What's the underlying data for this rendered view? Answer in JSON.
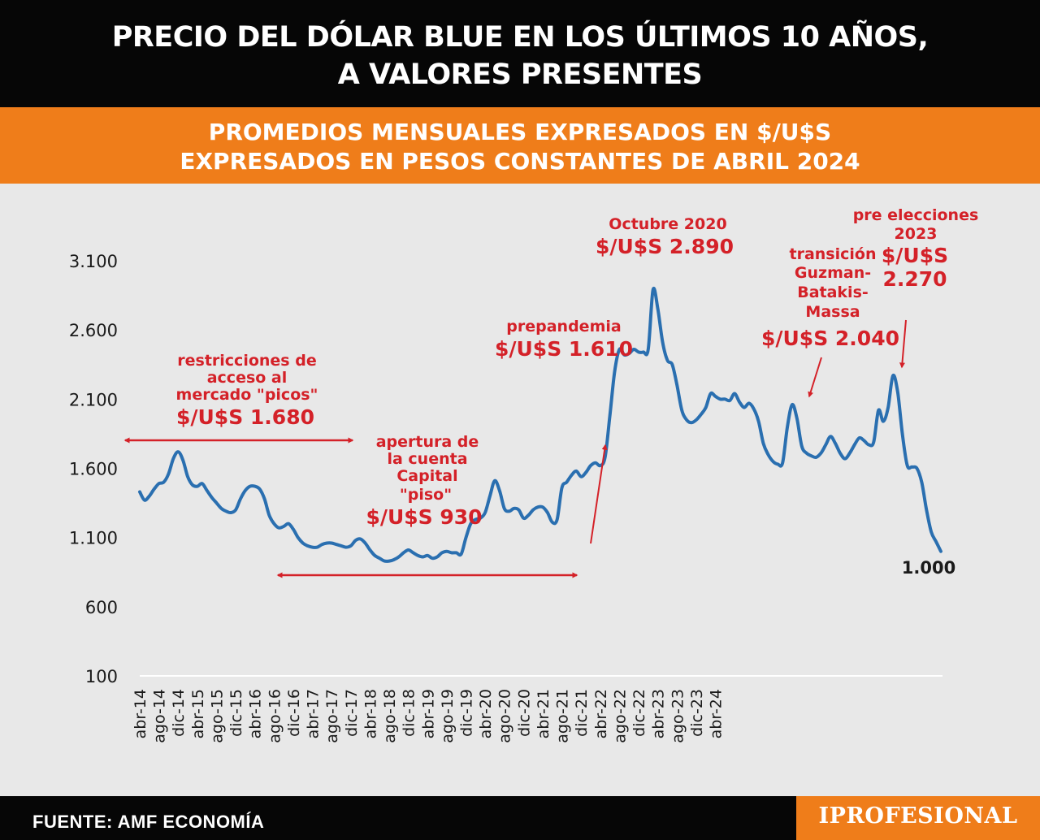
{
  "header": {
    "title_line1": "PRECIO DEL DÓLAR BLUE EN LOS ÚLTIMOS 10 AÑOS,",
    "title_line2": "A VALORES PRESENTES"
  },
  "subtitle": {
    "line1": "PROMEDIOS MENSUALES EXPRESADOS EN $/U$S",
    "line2": "EXPRESADOS EN PESOS CONSTANTES DE ABRIL 2024"
  },
  "footer": {
    "source": "FUENTE: AMF ECONOMÍA",
    "logo": "IPROFESIONAL"
  },
  "colors": {
    "line": "#2a6fb0",
    "annotation": "#d42128",
    "band": "#ef7d1a",
    "header": "#060606",
    "background": "#e8e8e8",
    "axis_text": "#1a1a1a"
  },
  "chart_data": {
    "type": "line",
    "title": "PRECIO DEL DÓLAR BLUE EN LOS ÚLTIMOS 10 AÑOS, A VALORES PRESENTES",
    "subtitle": "PROMEDIOS MENSUALES EXPRESADOS EN $/U$S EXPRESADOS EN PESOS CONSTANTES DE ABRIL 2024",
    "xlabel": "",
    "ylabel": "",
    "ylim": [
      100,
      3100
    ],
    "yticks": [
      100,
      600,
      1100,
      1600,
      2100,
      2600,
      3100
    ],
    "ytick_labels": [
      "100",
      "600",
      "1.100",
      "1.600",
      "2.100",
      "2.600",
      "3.100"
    ],
    "xtick_labels": [
      "abr-14",
      "ago-14",
      "dic-14",
      "abr-15",
      "ago-15",
      "dic-15",
      "abr-16",
      "ago-16",
      "dic-16",
      "abr-17",
      "ago-17",
      "dic-17",
      "abr-18",
      "ago-18",
      "dic-18",
      "abr-19",
      "ago-19",
      "dic-19",
      "abr-20",
      "ago-20",
      "dic-20",
      "abr-21",
      "ago-21",
      "dic-21",
      "abr-22",
      "ago-22",
      "dic-22",
      "abr-23",
      "ago-23",
      "dic-23",
      "abr-24"
    ],
    "grid": false,
    "legend": "none",
    "series": [
      {
        "values": [
          1430,
          1370,
          1400,
          1450,
          1490,
          1500,
          1560,
          1670,
          1720,
          1660,
          1540,
          1480,
          1470,
          1490,
          1440,
          1390,
          1350,
          1310,
          1290,
          1280,
          1300,
          1380,
          1440,
          1470,
          1470,
          1450,
          1380,
          1260,
          1200,
          1170,
          1180,
          1200,
          1160,
          1100,
          1060,
          1040,
          1030,
          1030,
          1050,
          1060,
          1060,
          1050,
          1040,
          1030,
          1040,
          1080,
          1090,
          1060,
          1010,
          970,
          950,
          930,
          930,
          940,
          960,
          990,
          1010,
          990,
          970,
          960,
          970,
          950,
          960,
          990,
          1000,
          990,
          990,
          980,
          1100,
          1200,
          1230,
          1240,
          1280,
          1400,
          1510,
          1440,
          1310,
          1290,
          1310,
          1300,
          1240,
          1260,
          1300,
          1320,
          1320,
          1280,
          1210,
          1230,
          1460,
          1500,
          1550,
          1580,
          1540,
          1570,
          1620,
          1640,
          1620,
          1680,
          1980,
          2300,
          2460,
          2420,
          2430,
          2460,
          2440,
          2440,
          2460,
          2890,
          2750,
          2510,
          2380,
          2350,
          2200,
          2020,
          1950,
          1930,
          1950,
          1990,
          2040,
          2140,
          2120,
          2100,
          2100,
          2090,
          2140,
          2080,
          2040,
          2070,
          2030,
          1940,
          1780,
          1700,
          1650,
          1630,
          1640,
          1900,
          2060,
          1960,
          1760,
          1710,
          1690,
          1680,
          1710,
          1770,
          1830,
          1780,
          1710,
          1670,
          1710,
          1770,
          1820,
          1800,
          1770,
          1790,
          2020,
          1940,
          2040,
          2270,
          2150,
          1840,
          1620,
          1610,
          1600,
          1500,
          1300,
          1140,
          1070,
          1000
        ]
      }
    ],
    "annotations": [
      {
        "lines": [
          "restricciones de",
          "acceso al",
          "mercado \"picos\""
        ],
        "value": "$/U$S 1.680"
      },
      {
        "lines": [
          "apertura de",
          "la cuenta",
          "Capital",
          "\"piso\""
        ],
        "value": "$/U$S 930"
      },
      {
        "lines": [
          "prepandemia"
        ],
        "value": "$/U$S 1.610"
      },
      {
        "lines": [
          "Octubre 2020"
        ],
        "value": "$/U$S 2.890"
      },
      {
        "lines": [
          "transición",
          "Guzman-",
          "Batakis-",
          "Massa"
        ],
        "value": "$/U$S 2.040"
      },
      {
        "lines": [
          "pre elecciones",
          "2023"
        ],
        "value_lines": [
          "$/U$S",
          "2.270"
        ]
      },
      {
        "lines": [],
        "value": "1.000"
      }
    ]
  }
}
